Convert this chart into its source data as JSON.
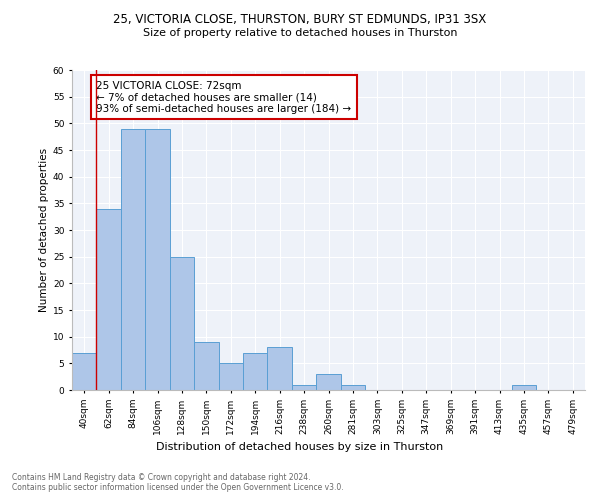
{
  "title1": "25, VICTORIA CLOSE, THURSTON, BURY ST EDMUNDS, IP31 3SX",
  "title2": "Size of property relative to detached houses in Thurston",
  "xlabel": "Distribution of detached houses by size in Thurston",
  "ylabel": "Number of detached properties",
  "bin_labels": [
    "40sqm",
    "62sqm",
    "84sqm",
    "106sqm",
    "128sqm",
    "150sqm",
    "172sqm",
    "194sqm",
    "216sqm",
    "238sqm",
    "260sqm",
    "281sqm",
    "303sqm",
    "325sqm",
    "347sqm",
    "369sqm",
    "391sqm",
    "413sqm",
    "435sqm",
    "457sqm",
    "479sqm"
  ],
  "bar_values": [
    7,
    34,
    49,
    49,
    25,
    9,
    5,
    7,
    8,
    1,
    3,
    1,
    0,
    0,
    0,
    0,
    0,
    0,
    1,
    0,
    0
  ],
  "bar_color": "#aec6e8",
  "bar_edge_color": "#5a9fd4",
  "vline_color": "#cc0000",
  "annotation_text": "25 VICTORIA CLOSE: 72sqm\n← 7% of detached houses are smaller (14)\n93% of semi-detached houses are larger (184) →",
  "annotation_box_color": "#ffffff",
  "annotation_box_edge": "#cc0000",
  "ylim": [
    0,
    60
  ],
  "yticks": [
    0,
    5,
    10,
    15,
    20,
    25,
    30,
    35,
    40,
    45,
    50,
    55,
    60
  ],
  "footer": "Contains HM Land Registry data © Crown copyright and database right 2024.\nContains public sector information licensed under the Open Government Licence v3.0.",
  "plot_bg_color": "#eef2f9",
  "title1_fontsize": 8.5,
  "title2_fontsize": 8.0,
  "ylabel_fontsize": 7.5,
  "xlabel_fontsize": 8.0,
  "tick_fontsize": 6.5,
  "annot_fontsize": 7.5,
  "footer_fontsize": 5.5
}
